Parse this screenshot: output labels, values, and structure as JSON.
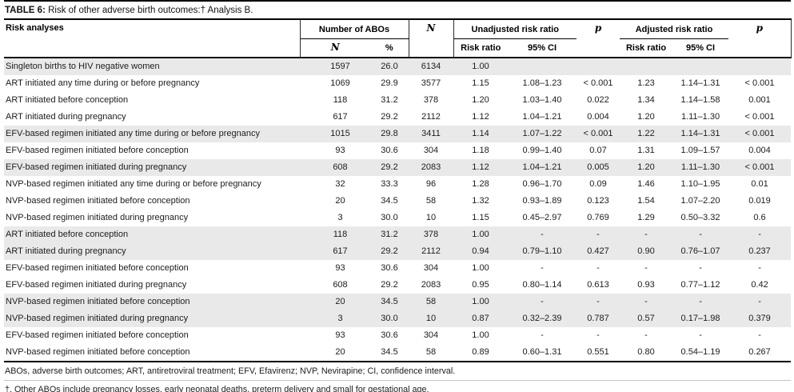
{
  "title": {
    "label": "TABLE 6:",
    "text": "Risk of other adverse birth outcomes:† Analysis B."
  },
  "table": {
    "headers": {
      "risk_analyses": "Risk analyses",
      "number_of_abos": "Number of ABOs",
      "n_sub": "N",
      "pct_sub": "%",
      "n_total": "N",
      "unadjusted_group": "Unadjusted risk ratio",
      "u_risk_ratio": "Risk ratio",
      "u_ci": "95% CI",
      "u_p": "p",
      "adjusted_group": "Adjusted risk ratio",
      "a_risk_ratio": "Risk ratio",
      "a_ci": "95% CI",
      "a_p": "p"
    },
    "rows": [
      {
        "label": "Singleton births to HIV negative women",
        "n_abo": "1597",
        "pct": "26.0",
        "n": "6134",
        "u_rr": "1.00",
        "u_ci": "",
        "u_p": "",
        "a_rr": "",
        "a_ci": "",
        "a_p": "",
        "shaded": true
      },
      {
        "label": "ART initiated any time during or before pregnancy",
        "n_abo": "1069",
        "pct": "29.9",
        "n": "3577",
        "u_rr": "1.15",
        "u_ci": "1.08–1.23",
        "u_p": "< 0.001",
        "a_rr": "1.23",
        "a_ci": "1.14–1.31",
        "a_p": "< 0.001",
        "shaded": false
      },
      {
        "label": "ART initiated before conception",
        "n_abo": "118",
        "pct": "31.2",
        "n": "378",
        "u_rr": "1.20",
        "u_ci": "1.03–1.40",
        "u_p": "0.022",
        "a_rr": "1.34",
        "a_ci": "1.14–1.58",
        "a_p": "0.001",
        "shaded": false
      },
      {
        "label": "ART initiated during pregnancy",
        "n_abo": "617",
        "pct": "29.2",
        "n": "2112",
        "u_rr": "1.12",
        "u_ci": "1.04–1.21",
        "u_p": "0.004",
        "a_rr": "1.20",
        "a_ci": "1.11–1.30",
        "a_p": "< 0.001",
        "shaded": false
      },
      {
        "label": "EFV-based regimen initiated any time during or before pregnancy",
        "n_abo": "1015",
        "pct": "29.8",
        "n": "3411",
        "u_rr": "1.14",
        "u_ci": "1.07–1.22",
        "u_p": "< 0.001",
        "a_rr": "1.22",
        "a_ci": "1.14–1.31",
        "a_p": "< 0.001",
        "shaded": true
      },
      {
        "label": "EFV-based regimen initiated before conception",
        "n_abo": "93",
        "pct": "30.6",
        "n": "304",
        "u_rr": "1.18",
        "u_ci": "0.99–1.40",
        "u_p": "0.07",
        "a_rr": "1.31",
        "a_ci": "1.09–1.57",
        "a_p": "0.004",
        "shaded": false
      },
      {
        "label": "EFV-based regimen initiated during pregnancy",
        "n_abo": "608",
        "pct": "29.2",
        "n": "2083",
        "u_rr": "1.12",
        "u_ci": "1.04–1.21",
        "u_p": "0.005",
        "a_rr": "1.20",
        "a_ci": "1.11–1.30",
        "a_p": "< 0.001",
        "shaded": true
      },
      {
        "label": "NVP-based regimen initiated any time during or before pregnancy",
        "n_abo": "32",
        "pct": "33.3",
        "n": "96",
        "u_rr": "1.28",
        "u_ci": "0.96–1.70",
        "u_p": "0.09",
        "a_rr": "1.46",
        "a_ci": "1.10–1.95",
        "a_p": "0.01",
        "shaded": false
      },
      {
        "label": "NVP-based regimen initiated before conception",
        "n_abo": "20",
        "pct": "34.5",
        "n": "58",
        "u_rr": "1.32",
        "u_ci": "0.93–1.89",
        "u_p": "0.123",
        "a_rr": "1.54",
        "a_ci": "1.07–2.20",
        "a_p": "0.019",
        "shaded": false
      },
      {
        "label": "NVP-based regimen initiated during pregnancy",
        "n_abo": "3",
        "pct": "30.0",
        "n": "10",
        "u_rr": "1.15",
        "u_ci": "0.45–2.97",
        "u_p": "0.769",
        "a_rr": "1.29",
        "a_ci": "0.50–3.32",
        "a_p": "0.6",
        "shaded": false
      },
      {
        "label": "ART initiated before conception",
        "n_abo": "118",
        "pct": "31.2",
        "n": "378",
        "u_rr": "1.00",
        "u_ci": "-",
        "u_p": "-",
        "a_rr": "-",
        "a_ci": "-",
        "a_p": "-",
        "shaded": true
      },
      {
        "label": "ART initiated during pregnancy",
        "n_abo": "617",
        "pct": "29.2",
        "n": "2112",
        "u_rr": "0.94",
        "u_ci": "0.79–1.10",
        "u_p": "0.427",
        "a_rr": "0.90",
        "a_ci": "0.76–1.07",
        "a_p": "0.237",
        "shaded": true
      },
      {
        "label": "EFV-based regimen initiated before conception",
        "n_abo": "93",
        "pct": "30.6",
        "n": "304",
        "u_rr": "1.00",
        "u_ci": "-",
        "u_p": "-",
        "a_rr": "-",
        "a_ci": "-",
        "a_p": "-",
        "shaded": false
      },
      {
        "label": "EFV-based regimen initiated during pregnancy",
        "n_abo": "608",
        "pct": "29.2",
        "n": "2083",
        "u_rr": "0.95",
        "u_ci": "0.80–1.14",
        "u_p": "0.613",
        "a_rr": "0.93",
        "a_ci": "0.77–1.12",
        "a_p": "0.42",
        "shaded": false
      },
      {
        "label": "NVP-based regimen initiated before conception",
        "n_abo": "20",
        "pct": "34.5",
        "n": "58",
        "u_rr": "1.00",
        "u_ci": "-",
        "u_p": "-",
        "a_rr": "-",
        "a_ci": "-",
        "a_p": "-",
        "shaded": true
      },
      {
        "label": "NVP-based regimen initiated during pregnancy",
        "n_abo": "3",
        "pct": "30.0",
        "n": "10",
        "u_rr": "0.87",
        "u_ci": "0.32–2.39",
        "u_p": "0.787",
        "a_rr": "0.57",
        "a_ci": "0.17–1.98",
        "a_p": "0.379",
        "shaded": true
      },
      {
        "label": "EFV-based regimen initiated before conception",
        "n_abo": "93",
        "pct": "30.6",
        "n": "304",
        "u_rr": "1.00",
        "u_ci": "-",
        "u_p": "-",
        "a_rr": "-",
        "a_ci": "-",
        "a_p": "-",
        "shaded": false
      },
      {
        "label": "NVP-based regimen initiated before conception",
        "n_abo": "20",
        "pct": "34.5",
        "n": "58",
        "u_rr": "0.89",
        "u_ci": "0.60–1.31",
        "u_p": "0.551",
        "a_rr": "0.80",
        "a_ci": "0.54–1.19",
        "a_p": "0.267",
        "shaded": false
      }
    ]
  },
  "footnotes": {
    "line1": "ABOs, adverse birth outcomes; ART, antiretroviral treatment; EFV, Efavirenz; NVP, Nevirapine; CI, confidence interval.",
    "line2": "†, Other ABOs include pregnancy losses, early neonatal deaths, preterm delivery and small for gestational age."
  },
  "colors": {
    "stripe": "#e9e9e9",
    "rule": "#000000",
    "text": "#1c1c1c"
  }
}
